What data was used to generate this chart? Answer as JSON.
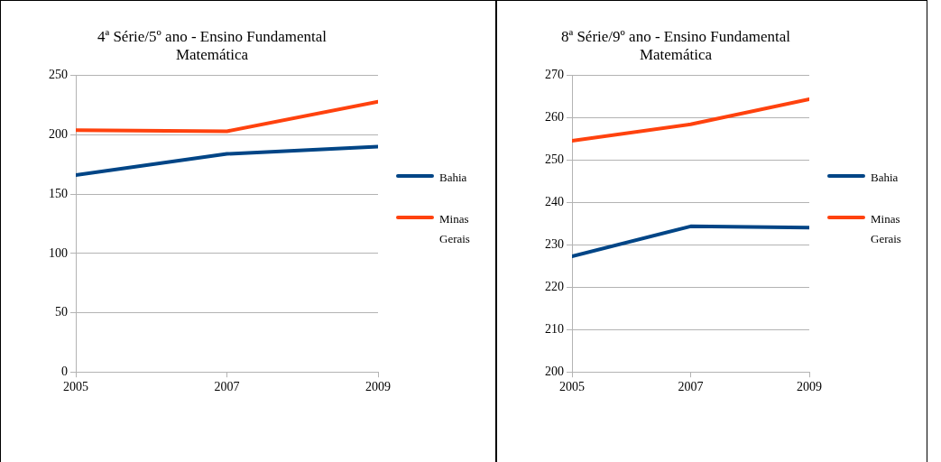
{
  "chart_data": [
    {
      "type": "line",
      "title": "4ª Série/5º ano - Ensino Fundamental\nMatemática",
      "x": [
        2005,
        2007,
        2009
      ],
      "xlim": [
        2005,
        2009
      ],
      "xticks": [
        2005,
        2007,
        2009
      ],
      "ylim": [
        0,
        250
      ],
      "yticks": [
        0,
        50,
        100,
        150,
        200,
        250
      ],
      "grid": "y",
      "legend": "right",
      "marker": "none",
      "line_style": "solid",
      "series": [
        {
          "name": "Bahia",
          "color": "#004586",
          "values": [
            166,
            184,
            190
          ]
        },
        {
          "name": "Minas Gerais",
          "color": "#ff420e",
          "values": [
            204,
            203,
            228
          ]
        }
      ]
    },
    {
      "type": "line",
      "title": "8ª Série/9º ano - Ensino Fundamental\nMatemática",
      "x": [
        2005,
        2007,
        2009
      ],
      "xlim": [
        2005,
        2009
      ],
      "xticks": [
        2005,
        2007,
        2009
      ],
      "ylim": [
        200,
        270
      ],
      "yticks": [
        200,
        210,
        220,
        230,
        240,
        250,
        260,
        270
      ],
      "grid": "y",
      "legend": "right",
      "marker": "none",
      "line_style": "solid",
      "series": [
        {
          "name": "Bahia",
          "color": "#004586",
          "values": [
            227.3,
            234.4,
            234.1
          ]
        },
        {
          "name": "Minas Gerais",
          "color": "#ff420e",
          "values": [
            254.6,
            258.5,
            264.4
          ]
        }
      ]
    }
  ]
}
